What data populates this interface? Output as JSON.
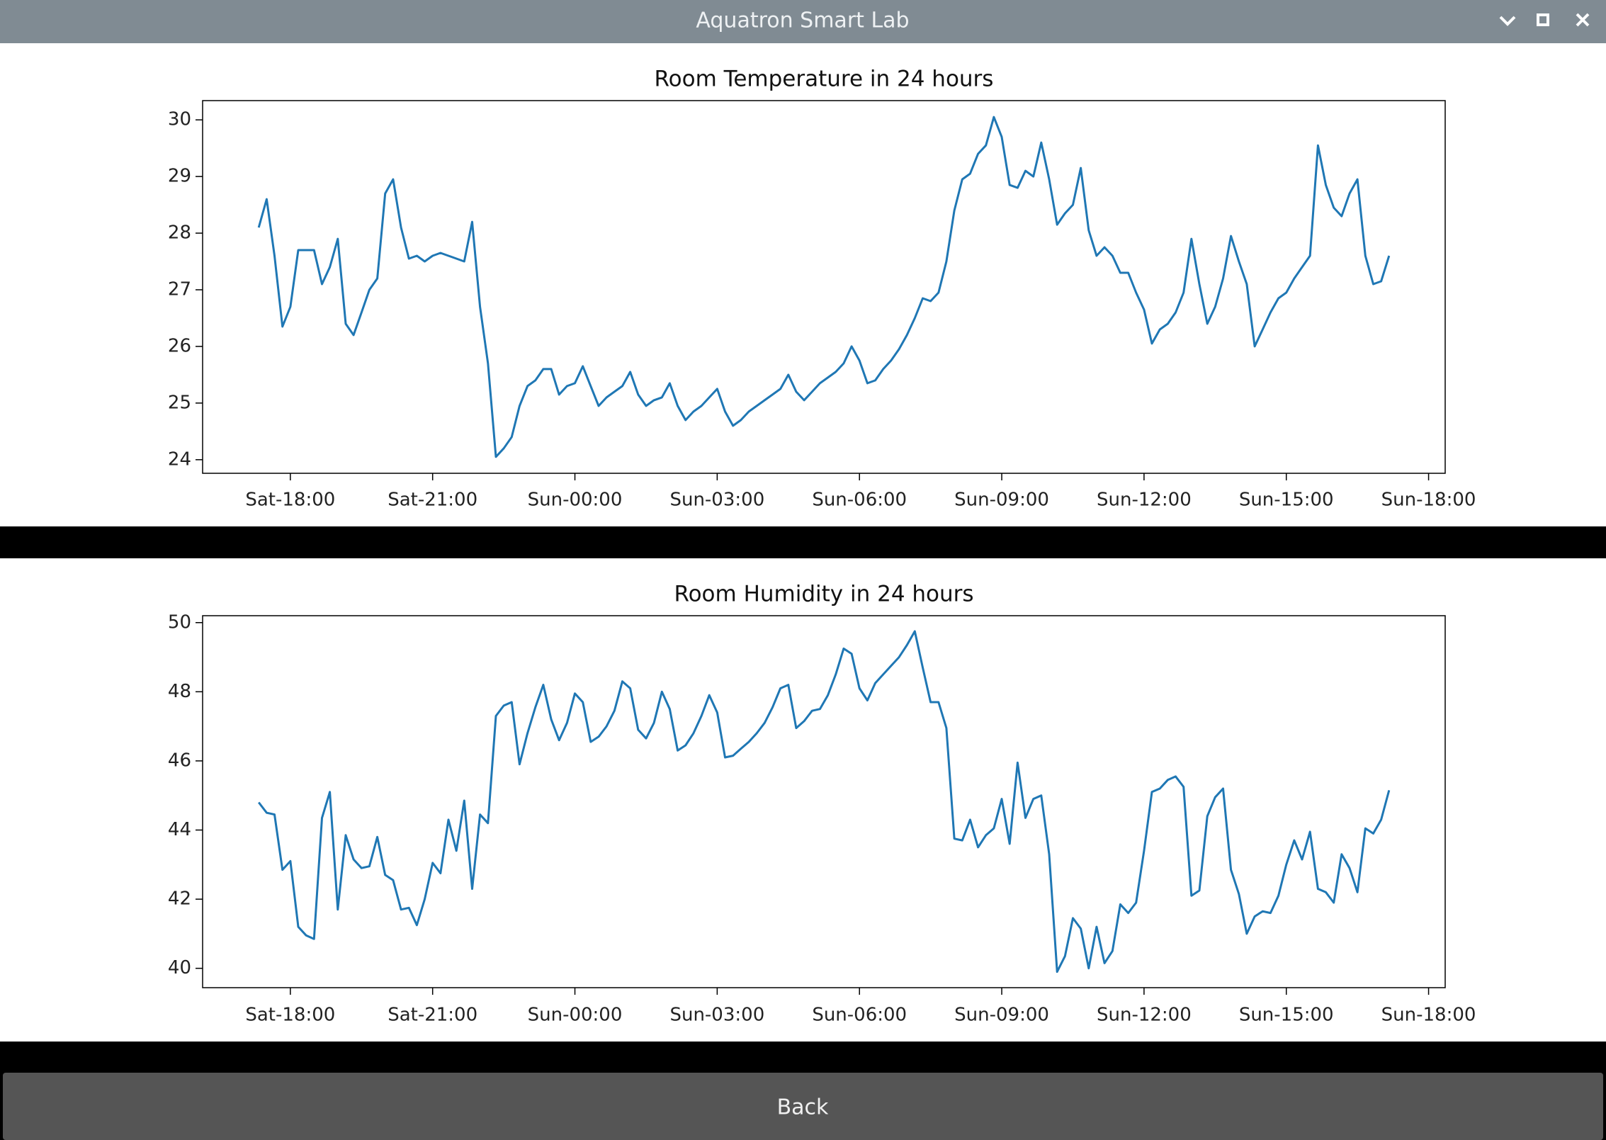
{
  "window": {
    "title": "Aquatron Smart Lab"
  },
  "button": {
    "label": "Back"
  },
  "chart_data": [
    {
      "type": "line",
      "title": "Room Temperature in 24 hours",
      "color": "#1f77b4",
      "x": [
        "Sat-17:20",
        "Sat-17:30",
        "Sat-17:40",
        "Sat-17:50",
        "Sat-18:00",
        "Sat-18:10",
        "Sat-18:20",
        "Sat-18:30",
        "Sat-18:40",
        "Sat-18:50",
        "Sat-19:00",
        "Sat-19:10",
        "Sat-19:20",
        "Sat-19:30",
        "Sat-19:40",
        "Sat-19:50",
        "Sat-20:00",
        "Sat-20:10",
        "Sat-20:20",
        "Sat-20:30",
        "Sat-20:40",
        "Sat-20:50",
        "Sat-21:00",
        "Sat-21:10",
        "Sat-21:20",
        "Sat-21:30",
        "Sat-21:40",
        "Sat-21:50",
        "Sat-22:00",
        "Sat-22:10",
        "Sat-22:20",
        "Sat-22:30",
        "Sat-22:40",
        "Sat-22:50",
        "Sat-23:00",
        "Sat-23:10",
        "Sat-23:20",
        "Sat-23:30",
        "Sat-23:40",
        "Sat-23:50",
        "Sun-00:00",
        "Sun-00:10",
        "Sun-00:20",
        "Sun-00:30",
        "Sun-00:40",
        "Sun-00:50",
        "Sun-01:00",
        "Sun-01:10",
        "Sun-01:20",
        "Sun-01:30",
        "Sun-01:40",
        "Sun-01:50",
        "Sun-02:00",
        "Sun-02:10",
        "Sun-02:20",
        "Sun-02:30",
        "Sun-02:40",
        "Sun-02:50",
        "Sun-03:00",
        "Sun-03:10",
        "Sun-03:20",
        "Sun-03:30",
        "Sun-03:40",
        "Sun-03:50",
        "Sun-04:00",
        "Sun-04:10",
        "Sun-04:20",
        "Sun-04:30",
        "Sun-04:40",
        "Sun-04:50",
        "Sun-05:00",
        "Sun-05:10",
        "Sun-05:20",
        "Sun-05:30",
        "Sun-05:40",
        "Sun-05:50",
        "Sun-06:00",
        "Sun-06:10",
        "Sun-06:20",
        "Sun-06:30",
        "Sun-06:40",
        "Sun-06:50",
        "Sun-07:00",
        "Sun-07:10",
        "Sun-07:20",
        "Sun-07:30",
        "Sun-07:40",
        "Sun-07:50",
        "Sun-08:00",
        "Sun-08:10",
        "Sun-08:20",
        "Sun-08:30",
        "Sun-08:40",
        "Sun-08:50",
        "Sun-09:00",
        "Sun-09:10",
        "Sun-09:20",
        "Sun-09:30",
        "Sun-09:40",
        "Sun-09:50",
        "Sun-10:00",
        "Sun-10:10",
        "Sun-10:20",
        "Sun-10:30",
        "Sun-10:40",
        "Sun-10:50",
        "Sun-11:00",
        "Sun-11:10",
        "Sun-11:20",
        "Sun-11:30",
        "Sun-11:40",
        "Sun-11:50",
        "Sun-12:00",
        "Sun-12:10",
        "Sun-12:20",
        "Sun-12:30",
        "Sun-12:40",
        "Sun-12:50",
        "Sun-13:00",
        "Sun-13:10",
        "Sun-13:20",
        "Sun-13:30",
        "Sun-13:40",
        "Sun-13:50",
        "Sun-14:00",
        "Sun-14:10",
        "Sun-14:20",
        "Sun-14:30",
        "Sun-14:40",
        "Sun-14:50",
        "Sun-15:00",
        "Sun-15:10",
        "Sun-15:20",
        "Sun-15:30",
        "Sun-15:40",
        "Sun-15:50",
        "Sun-16:00",
        "Sun-16:10",
        "Sun-16:20",
        "Sun-16:30",
        "Sun-16:40",
        "Sun-16:50",
        "Sun-17:00",
        "Sun-17:10"
      ],
      "values": [
        28.1,
        28.6,
        27.6,
        26.35,
        26.7,
        27.7,
        27.7,
        27.7,
        27.1,
        27.4,
        27.9,
        26.4,
        26.2,
        26.6,
        27.0,
        27.2,
        28.7,
        28.95,
        28.1,
        27.55,
        27.6,
        27.5,
        27.6,
        27.65,
        27.6,
        27.55,
        27.5,
        28.2,
        26.7,
        25.7,
        24.05,
        24.2,
        24.4,
        24.95,
        25.3,
        25.4,
        25.6,
        25.6,
        25.15,
        25.3,
        25.35,
        25.65,
        25.3,
        24.95,
        25.1,
        25.2,
        25.3,
        25.55,
        25.15,
        24.95,
        25.05,
        25.1,
        25.35,
        24.95,
        24.7,
        24.85,
        24.95,
        25.1,
        25.25,
        24.85,
        24.6,
        24.7,
        24.85,
        24.95,
        25.05,
        25.15,
        25.25,
        25.5,
        25.2,
        25.05,
        25.2,
        25.35,
        25.45,
        25.55,
        25.7,
        26.0,
        25.75,
        25.35,
        25.4,
        25.6,
        25.75,
        25.95,
        26.2,
        26.5,
        26.85,
        26.8,
        26.95,
        27.5,
        28.4,
        28.95,
        29.05,
        29.4,
        29.55,
        30.05,
        29.7,
        28.85,
        28.8,
        29.1,
        29.0,
        29.6,
        28.95,
        28.15,
        28.35,
        28.5,
        29.15,
        28.05,
        27.6,
        27.75,
        27.6,
        27.3,
        27.3,
        26.95,
        26.65,
        26.05,
        26.3,
        26.4,
        26.6,
        26.95,
        27.9,
        27.1,
        26.4,
        26.7,
        27.2,
        27.95,
        27.5,
        27.1,
        26.0,
        26.3,
        26.6,
        26.85,
        26.95,
        27.2,
        27.4,
        27.6,
        29.55,
        28.85,
        28.45,
        28.3,
        28.7,
        28.95,
        27.6,
        27.1,
        27.15,
        27.6
      ],
      "xlim": [
        "Sat-16:09",
        "Sun-18:21"
      ],
      "xticks": [
        "Sat-18:00",
        "Sat-21:00",
        "Sun-00:00",
        "Sun-03:00",
        "Sun-06:00",
        "Sun-09:00",
        "Sun-12:00",
        "Sun-15:00",
        "Sun-18:00"
      ],
      "ylim": [
        23.76,
        30.34
      ],
      "yticks": [
        24,
        25,
        26,
        27,
        28,
        29,
        30
      ]
    },
    {
      "type": "line",
      "title": "Room Humidity in 24 hours",
      "color": "#1f77b4",
      "x": [
        "Sat-17:20",
        "Sat-17:30",
        "Sat-17:40",
        "Sat-17:50",
        "Sat-18:00",
        "Sat-18:10",
        "Sat-18:20",
        "Sat-18:30",
        "Sat-18:40",
        "Sat-18:50",
        "Sat-19:00",
        "Sat-19:10",
        "Sat-19:20",
        "Sat-19:30",
        "Sat-19:40",
        "Sat-19:50",
        "Sat-20:00",
        "Sat-20:10",
        "Sat-20:20",
        "Sat-20:30",
        "Sat-20:40",
        "Sat-20:50",
        "Sat-21:00",
        "Sat-21:10",
        "Sat-21:20",
        "Sat-21:30",
        "Sat-21:40",
        "Sat-21:50",
        "Sat-22:00",
        "Sat-22:10",
        "Sat-22:20",
        "Sat-22:30",
        "Sat-22:40",
        "Sat-22:50",
        "Sat-23:00",
        "Sat-23:10",
        "Sat-23:20",
        "Sat-23:30",
        "Sat-23:40",
        "Sat-23:50",
        "Sun-00:00",
        "Sun-00:10",
        "Sun-00:20",
        "Sun-00:30",
        "Sun-00:40",
        "Sun-00:50",
        "Sun-01:00",
        "Sun-01:10",
        "Sun-01:20",
        "Sun-01:30",
        "Sun-01:40",
        "Sun-01:50",
        "Sun-02:00",
        "Sun-02:10",
        "Sun-02:20",
        "Sun-02:30",
        "Sun-02:40",
        "Sun-02:50",
        "Sun-03:00",
        "Sun-03:10",
        "Sun-03:20",
        "Sun-03:30",
        "Sun-03:40",
        "Sun-03:50",
        "Sun-04:00",
        "Sun-04:10",
        "Sun-04:20",
        "Sun-04:30",
        "Sun-04:40",
        "Sun-04:50",
        "Sun-05:00",
        "Sun-05:10",
        "Sun-05:20",
        "Sun-05:30",
        "Sun-05:40",
        "Sun-05:50",
        "Sun-06:00",
        "Sun-06:10",
        "Sun-06:20",
        "Sun-06:30",
        "Sun-06:40",
        "Sun-06:50",
        "Sun-07:00",
        "Sun-07:10",
        "Sun-07:20",
        "Sun-07:30",
        "Sun-07:40",
        "Sun-07:50",
        "Sun-08:00",
        "Sun-08:10",
        "Sun-08:20",
        "Sun-08:30",
        "Sun-08:40",
        "Sun-08:50",
        "Sun-09:00",
        "Sun-09:10",
        "Sun-09:20",
        "Sun-09:30",
        "Sun-09:40",
        "Sun-09:50",
        "Sun-10:00",
        "Sun-10:10",
        "Sun-10:20",
        "Sun-10:30",
        "Sun-10:40",
        "Sun-10:50",
        "Sun-11:00",
        "Sun-11:10",
        "Sun-11:20",
        "Sun-11:30",
        "Sun-11:40",
        "Sun-11:50",
        "Sun-12:00",
        "Sun-12:10",
        "Sun-12:20",
        "Sun-12:30",
        "Sun-12:40",
        "Sun-12:50",
        "Sun-13:00",
        "Sun-13:10",
        "Sun-13:20",
        "Sun-13:30",
        "Sun-13:40",
        "Sun-13:50",
        "Sun-14:00",
        "Sun-14:10",
        "Sun-14:20",
        "Sun-14:30",
        "Sun-14:40",
        "Sun-14:50",
        "Sun-15:00",
        "Sun-15:10",
        "Sun-15:20",
        "Sun-15:30",
        "Sun-15:40",
        "Sun-15:50",
        "Sun-16:00",
        "Sun-16:10",
        "Sun-16:20",
        "Sun-16:30",
        "Sun-16:40",
        "Sun-16:50",
        "Sun-17:00",
        "Sun-17:10"
      ],
      "values": [
        44.8,
        44.5,
        44.45,
        42.85,
        43.1,
        41.2,
        40.95,
        40.85,
        44.35,
        45.1,
        41.7,
        43.85,
        43.15,
        42.9,
        42.95,
        43.8,
        42.7,
        42.55,
        41.7,
        41.75,
        41.25,
        42.0,
        43.05,
        42.75,
        44.3,
        43.4,
        44.85,
        42.3,
        44.45,
        44.2,
        47.3,
        47.6,
        47.7,
        45.9,
        46.8,
        47.55,
        48.2,
        47.2,
        46.6,
        47.1,
        47.95,
        47.7,
        46.55,
        46.7,
        47.0,
        47.45,
        48.3,
        48.1,
        46.9,
        46.65,
        47.1,
        48.0,
        47.5,
        46.3,
        46.45,
        46.8,
        47.3,
        47.9,
        47.4,
        46.1,
        46.15,
        46.35,
        46.55,
        46.8,
        47.1,
        47.55,
        48.1,
        48.2,
        46.95,
        47.15,
        47.45,
        47.5,
        47.9,
        48.5,
        49.25,
        49.1,
        48.1,
        47.75,
        48.25,
        48.5,
        48.75,
        49.0,
        49.35,
        49.75,
        48.7,
        47.7,
        47.7,
        46.95,
        43.75,
        43.7,
        44.3,
        43.5,
        43.85,
        44.05,
        44.9,
        43.6,
        45.95,
        44.35,
        44.9,
        45.0,
        43.3,
        39.9,
        40.35,
        41.45,
        41.15,
        40.0,
        41.2,
        40.15,
        40.5,
        41.85,
        41.6,
        41.9,
        43.4,
        45.1,
        45.2,
        45.45,
        45.55,
        45.25,
        42.1,
        42.25,
        44.4,
        44.95,
        45.2,
        42.85,
        42.15,
        41.0,
        41.5,
        41.65,
        41.6,
        42.1,
        43.0,
        43.7,
        43.15,
        43.95,
        42.3,
        42.2,
        41.9,
        43.3,
        42.9,
        42.2,
        44.05,
        43.9,
        44.3,
        45.15
      ],
      "xlim": [
        "Sat-16:09",
        "Sun-18:21"
      ],
      "xticks": [
        "Sat-18:00",
        "Sat-21:00",
        "Sun-00:00",
        "Sun-03:00",
        "Sun-06:00",
        "Sun-09:00",
        "Sun-12:00",
        "Sun-15:00",
        "Sun-18:00"
      ],
      "ylim": [
        39.44,
        50.2
      ],
      "yticks": [
        40,
        42,
        44,
        46,
        48,
        50
      ]
    }
  ]
}
